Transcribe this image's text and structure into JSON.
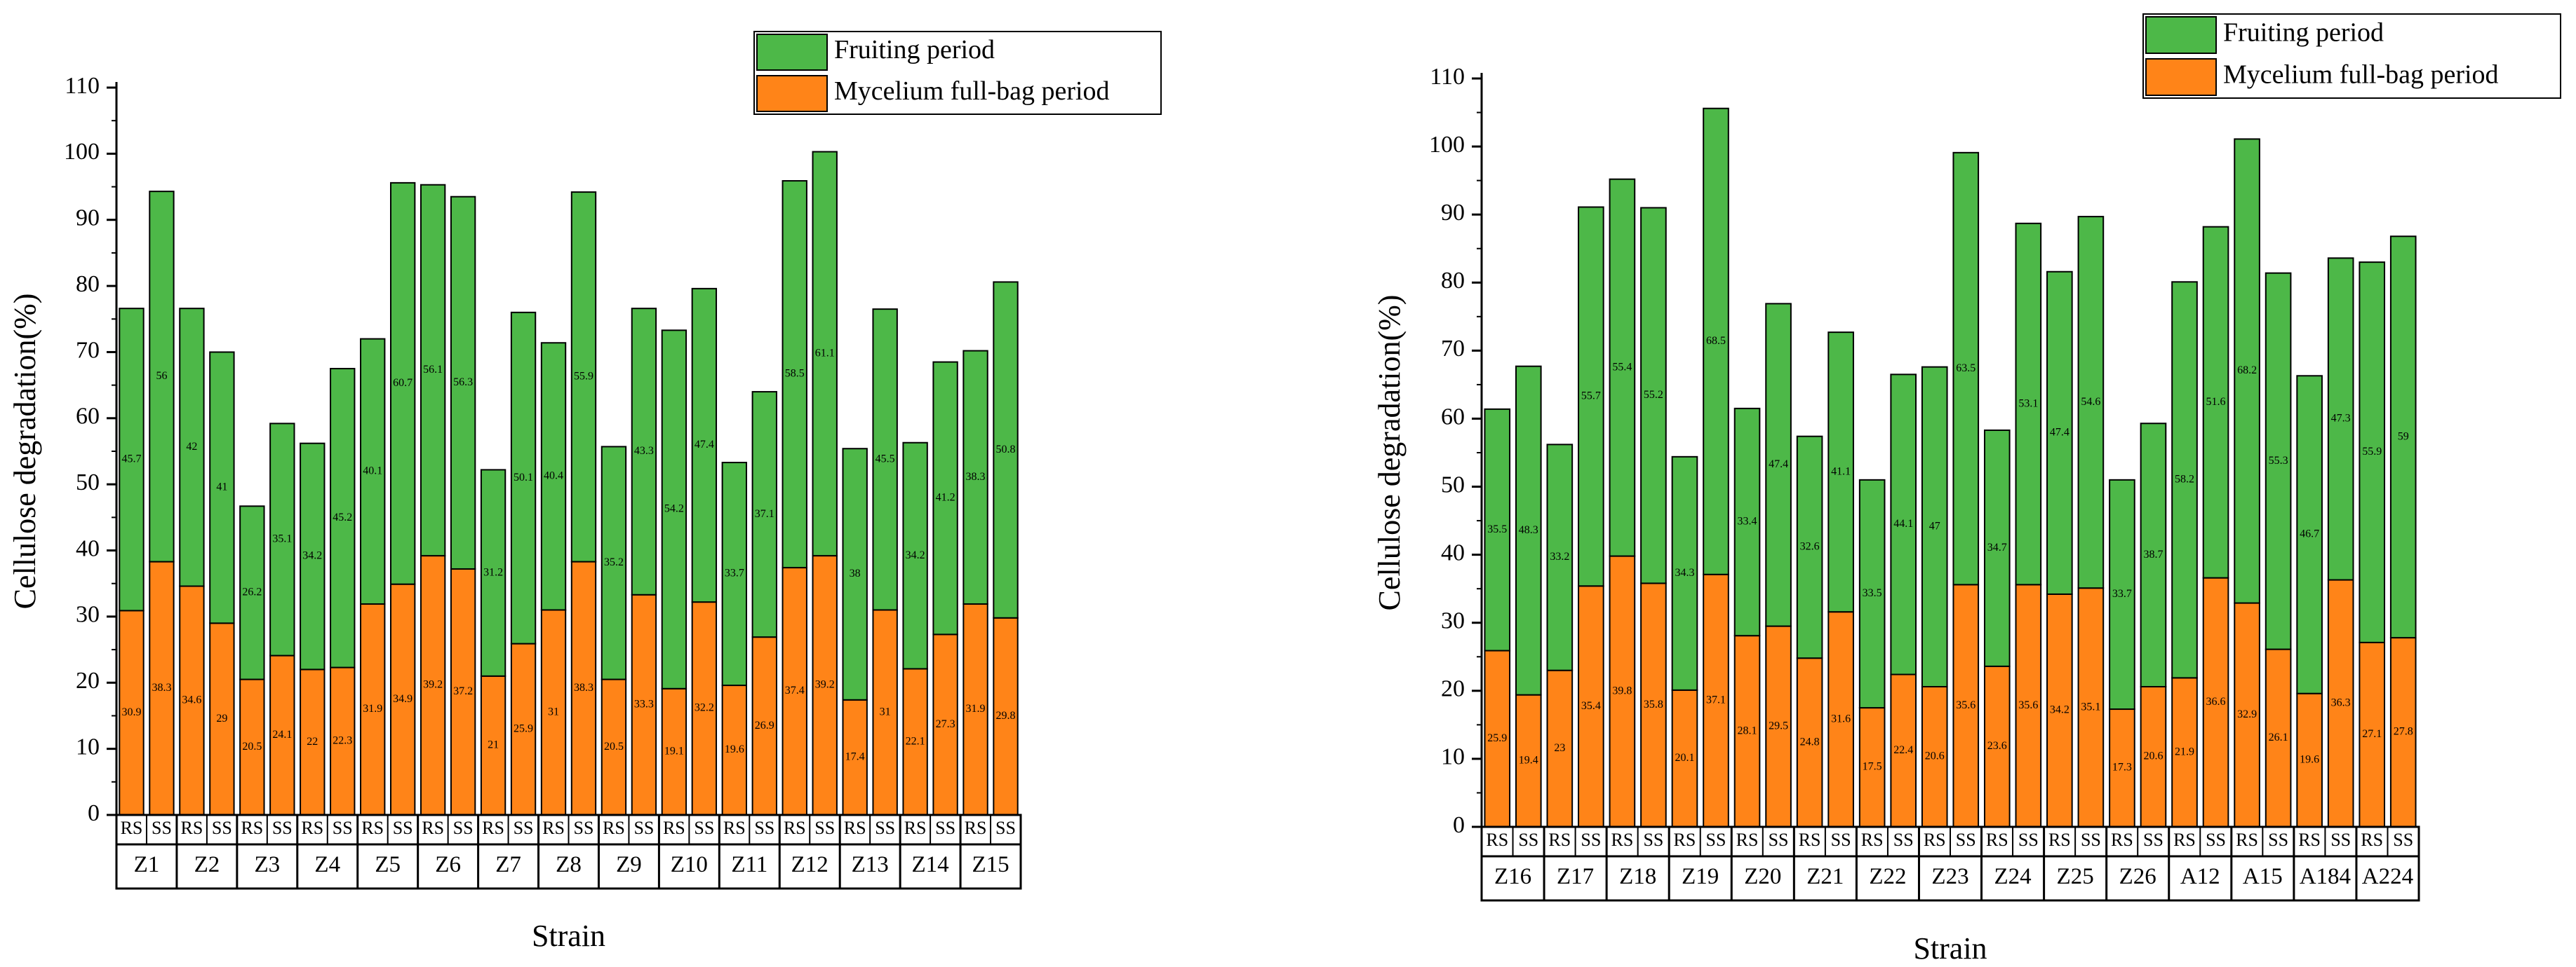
{
  "colors": {
    "fruiting": "#4DB848",
    "mycelium": "#FF8418",
    "axis": "#000000"
  },
  "chart_data": [
    {
      "type": "bar",
      "stacked": true,
      "xlabel": "Strain",
      "ylabel": "Cellulose degradation(%)",
      "ylim": [
        0,
        110
      ],
      "yticks": [
        0,
        10,
        20,
        30,
        40,
        50,
        60,
        70,
        80,
        90,
        100,
        110
      ],
      "legend": [
        "Fruiting period",
        "Mycelium full-bag period"
      ],
      "legend_position": "top-right",
      "strains": [
        "Z1",
        "Z2",
        "Z3",
        "Z4",
        "Z5",
        "Z6",
        "Z7",
        "Z8",
        "Z9",
        "Z10",
        "Z11",
        "Z12",
        "Z13",
        "Z14",
        "Z15"
      ],
      "sub_categories": [
        "RS",
        "SS"
      ],
      "series": [
        {
          "name": "Mycelium full-bag period",
          "values": [
            30.9,
            38.3,
            34.6,
            29,
            20.5,
            24.1,
            22,
            22.3,
            31.9,
            34.9,
            39.2,
            37.2,
            21,
            25.9,
            31,
            38.3,
            20.5,
            33.3,
            19.1,
            32.2,
            19.6,
            26.9,
            37.4,
            39.2,
            17.4,
            31,
            22.1,
            27.3,
            31.9,
            29.8
          ]
        },
        {
          "name": "Fruiting period",
          "values": [
            45.7,
            56,
            42,
            41,
            26.2,
            35.1,
            34.2,
            45.2,
            40.1,
            60.7,
            56.1,
            56.3,
            31.2,
            50.1,
            40.4,
            55.9,
            35.2,
            43.3,
            54.2,
            47.4,
            33.7,
            37.1,
            58.5,
            61.1,
            38,
            45.5,
            34.2,
            41.2,
            38.3,
            50.8
          ]
        }
      ]
    },
    {
      "type": "bar",
      "stacked": true,
      "xlabel": "Strain",
      "ylabel": "Cellulose degradation(%)",
      "ylim": [
        0,
        110
      ],
      "yticks": [
        0,
        10,
        20,
        30,
        40,
        50,
        60,
        70,
        80,
        90,
        100,
        110
      ],
      "legend": [
        "Fruiting period",
        "Mycelium full-bag period"
      ],
      "legend_position": "top-right",
      "strains": [
        "Z16",
        "Z17",
        "Z18",
        "Z19",
        "Z20",
        "Z21",
        "Z22",
        "Z23",
        "Z24",
        "Z25",
        "Z26",
        "A12",
        "A15",
        "A184",
        "A224"
      ],
      "sub_categories": [
        "RS",
        "SS"
      ],
      "series": [
        {
          "name": "Mycelium full-bag period",
          "values": [
            25.9,
            19.4,
            23,
            35.4,
            39.8,
            35.8,
            20.1,
            37.1,
            28.1,
            29.5,
            24.8,
            31.6,
            17.5,
            22.4,
            20.6,
            35.6,
            23.6,
            35.6,
            34.2,
            35.1,
            17.3,
            20.6,
            21.9,
            36.6,
            32.9,
            26.1,
            19.6,
            36.3,
            27.1,
            27.8
          ]
        },
        {
          "name": "Fruiting period",
          "values": [
            35.5,
            48.3,
            33.2,
            55.7,
            55.4,
            55.2,
            34.3,
            68.5,
            33.4,
            47.4,
            32.6,
            41.1,
            33.5,
            44.1,
            47,
            63.5,
            34.7,
            53.1,
            47.4,
            54.6,
            33.7,
            38.7,
            58.2,
            51.6,
            68.2,
            55.3,
            46.7,
            47.3,
            55.9,
            59
          ]
        }
      ]
    }
  ]
}
